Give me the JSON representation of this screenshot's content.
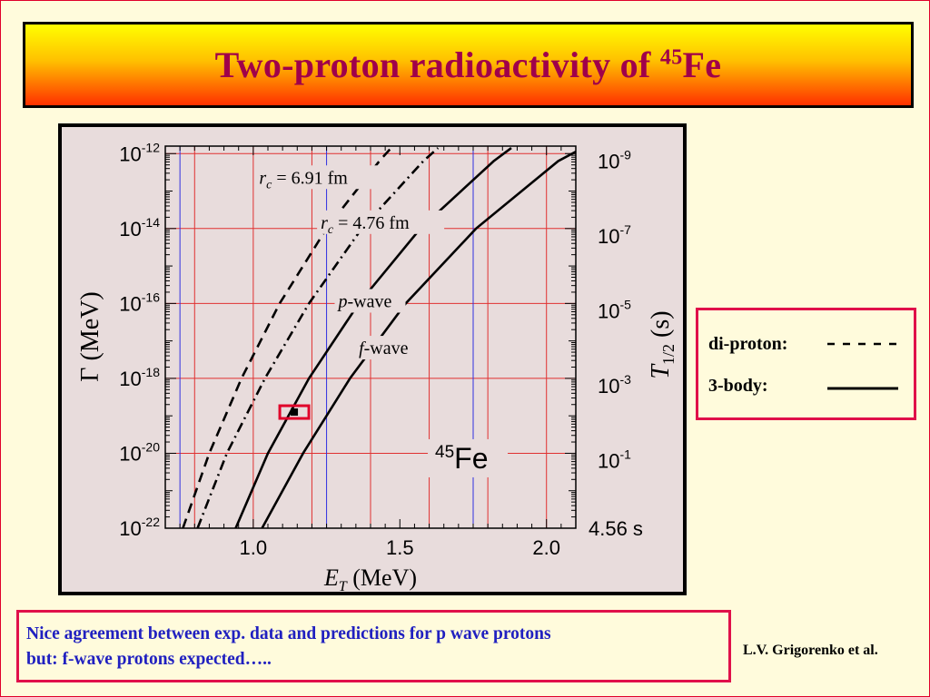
{
  "slide": {
    "title_main": "Two-proton radioactivity of",
    "title_sup": "45",
    "title_element": "Fe"
  },
  "legend": {
    "diproton_label": "di-proton:",
    "threebody_label": "3-body:"
  },
  "note": {
    "line1": "Nice agreement between exp. data and predictions for p wave protons",
    "line2": "but:  f-wave protons expected….."
  },
  "author": "L.V. Grigorenko et al.",
  "colors": {
    "title_text": "#a0004a",
    "note_text": "#2020c0",
    "box_border": "#e0104a",
    "grid_red": "#e03030",
    "grid_blue": "#3030e0"
  },
  "chart_data": {
    "type": "line",
    "title": "",
    "xlabel_main": "E",
    "xlabel_sub": "T",
    "xlabel_unit": "(MeV)",
    "ylabel_left": "Γ  (MeV)",
    "ylabel_right_main": "T",
    "ylabel_right_sub": "1/2",
    "ylabel_right_unit": "(s)",
    "xlim": [
      0.7,
      2.1
    ],
    "ylim_log10": [
      -22,
      -11.8
    ],
    "yscale": "log",
    "x_ticks": [
      {
        "value": 1.0,
        "label": "1.0"
      },
      {
        "value": 1.5,
        "label": "1.5"
      },
      {
        "value": 2.0,
        "label": "2.0"
      }
    ],
    "y_ticks_left": [
      {
        "exp": -12,
        "base": "10",
        "sup": "-12"
      },
      {
        "exp": -14,
        "base": "10",
        "sup": "-14"
      },
      {
        "exp": -16,
        "base": "10",
        "sup": "-16"
      },
      {
        "exp": -18,
        "base": "10",
        "sup": "-18"
      },
      {
        "exp": -20,
        "base": "10",
        "sup": "-20"
      },
      {
        "exp": -22,
        "base": "10",
        "sup": "-22"
      }
    ],
    "y_ticks_right": [
      {
        "gamma_exp": -12.2,
        "base": "10",
        "sup": "-9"
      },
      {
        "gamma_exp": -14.2,
        "base": "10",
        "sup": "-7"
      },
      {
        "gamma_exp": -16.2,
        "base": "10",
        "sup": "-5"
      },
      {
        "gamma_exp": -18.2,
        "base": "10",
        "sup": "-3"
      },
      {
        "gamma_exp": -20.2,
        "base": "10",
        "sup": "-1"
      },
      {
        "gamma_exp": -22.0,
        "text": "4.56  s"
      }
    ],
    "grid": true,
    "grid_red_x": [
      0.8,
      1.0,
      1.2,
      1.4,
      1.6,
      1.8,
      2.0
    ],
    "grid_blue_x": [
      0.75,
      1.25,
      1.75
    ],
    "grid_red_y_log10": [
      -12,
      -14,
      -16,
      -18,
      -20
    ],
    "series": [
      {
        "name": "",
        "style": "dashed",
        "points": [
          [
            0.76,
            -22.0
          ],
          [
            0.85,
            -20.0
          ],
          [
            0.96,
            -18.0
          ],
          [
            1.09,
            -16.0
          ],
          [
            1.25,
            -14.0
          ],
          [
            1.43,
            -12.2
          ],
          [
            1.47,
            -11.85
          ]
        ]
      },
      {
        "name": "",
        "style": "dashdot",
        "points": [
          [
            0.81,
            -22.0
          ],
          [
            0.91,
            -20.0
          ],
          [
            1.04,
            -18.0
          ],
          [
            1.19,
            -16.0
          ],
          [
            1.37,
            -14.0
          ],
          [
            1.58,
            -12.2
          ],
          [
            1.63,
            -11.85
          ]
        ]
      },
      {
        "name": "",
        "style": "solid",
        "points": [
          [
            0.94,
            -22.0
          ],
          [
            1.05,
            -20.0
          ],
          [
            1.19,
            -18.0
          ],
          [
            1.36,
            -16.0
          ],
          [
            1.57,
            -14.0
          ],
          [
            1.82,
            -12.2
          ],
          [
            1.88,
            -11.85
          ]
        ]
      },
      {
        "name": "",
        "style": "solid",
        "points": [
          [
            1.03,
            -22.0
          ],
          [
            1.17,
            -20.0
          ],
          [
            1.33,
            -18.0
          ],
          [
            1.52,
            -16.0
          ],
          [
            1.76,
            -14.0
          ],
          [
            2.04,
            -12.2
          ],
          [
            2.1,
            -11.95
          ]
        ]
      }
    ],
    "annotations": [
      {
        "kind": "rc",
        "symbol": "r",
        "sub": "c",
        "text": " = 6.91 fm",
        "x": 1.02,
        "y": -12.8
      },
      {
        "kind": "rc",
        "symbol": "r",
        "sub": "c",
        "text": " = 4.76 fm",
        "x": 1.23,
        "y": -14.0
      },
      {
        "kind": "wave",
        "symbol": "p",
        "text": "-wave",
        "x": 1.29,
        "y": -16.1
      },
      {
        "kind": "wave",
        "symbol": "f",
        "text": "-wave",
        "x": 1.36,
        "y": -17.35
      }
    ],
    "isotope_label": {
      "sup": "45",
      "text": "Fe",
      "x": 1.62,
      "y": -20.4
    },
    "experimental_point": {
      "x": 1.14,
      "y_log10": -18.9
    }
  }
}
